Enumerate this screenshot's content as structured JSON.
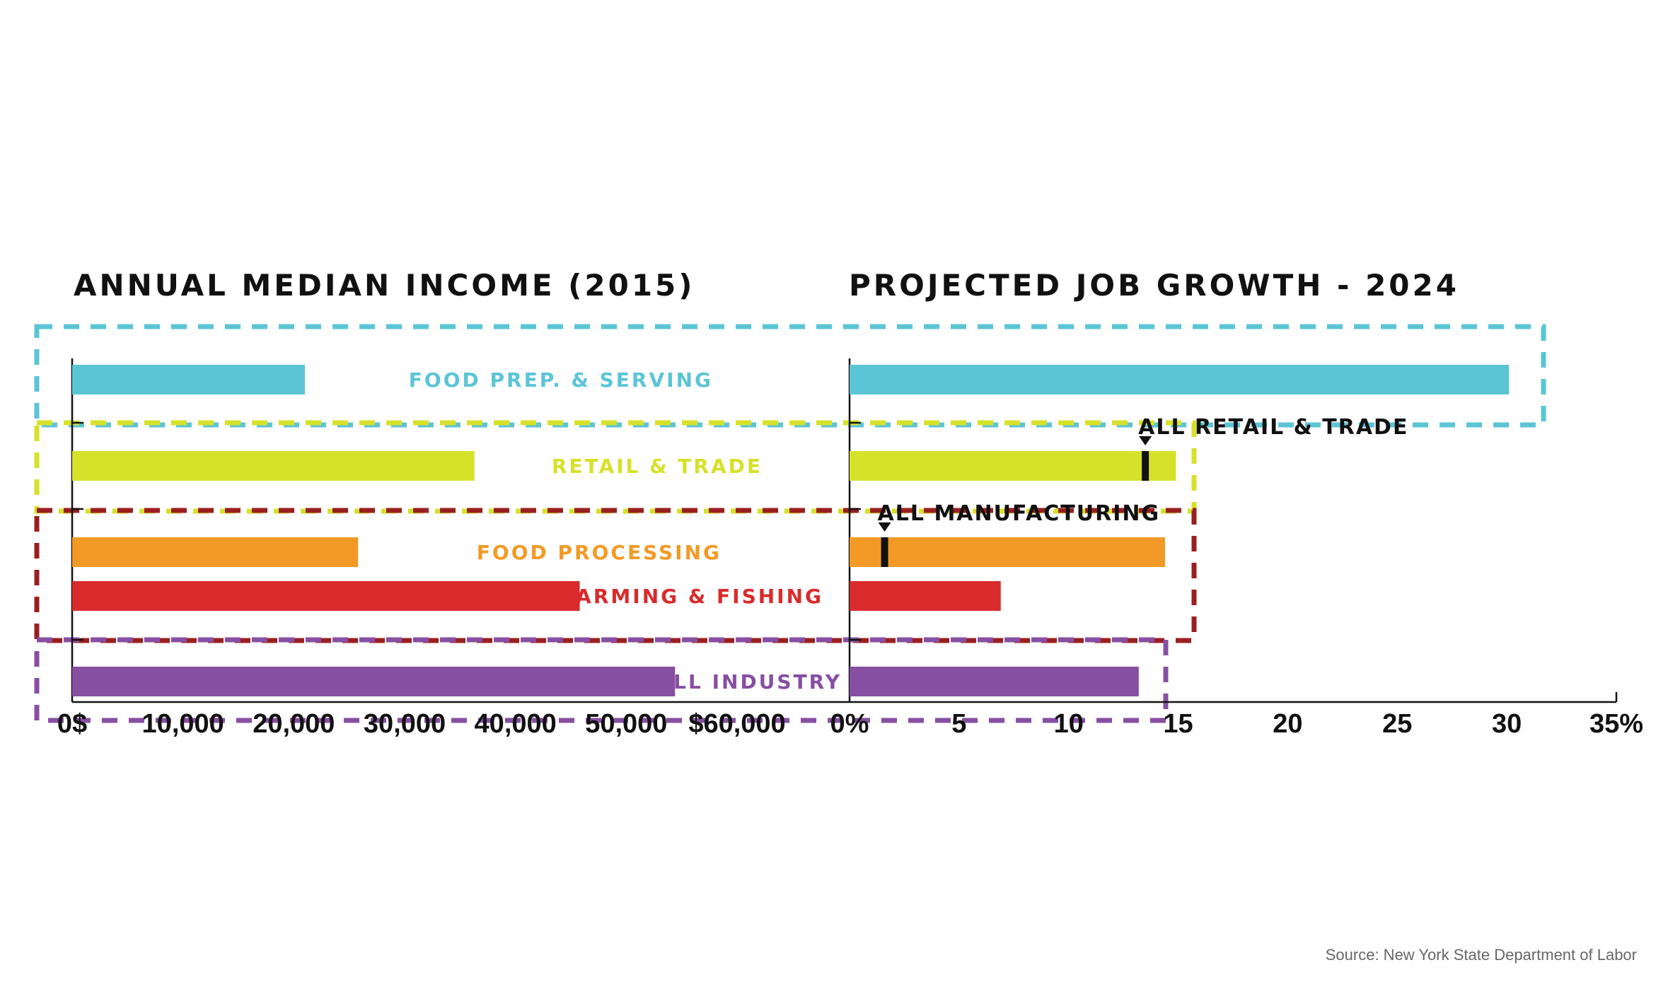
{
  "chart_data": [
    {
      "type": "bar",
      "orientation": "horizontal",
      "title": "ANNUAL MEDIAN INCOME (2015)",
      "categories": [
        "FOOD PREP. & SERVING",
        "RETAIL & TRADE",
        "FOOD PROCESSING",
        "FARMING & FISHING",
        "ALL INDUSTRY"
      ],
      "values": [
        21000,
        36300,
        25800,
        45800,
        54400
      ],
      "xlim": [
        0,
        60000
      ],
      "tick_labels": [
        "0$",
        "10,000",
        "20,000",
        "30,000",
        "40,000",
        "50,000",
        "$60,000"
      ],
      "tick_values": [
        0,
        10000,
        20000,
        30000,
        40000,
        50000,
        60000
      ]
    },
    {
      "type": "bar",
      "orientation": "horizontal",
      "title": "PROJECTED JOB GROWTH - 2024",
      "categories": [
        "FOOD PREP. & SERVING",
        "RETAIL & TRADE",
        "FOOD PROCESSING",
        "FARMING & FISHING",
        "ALL INDUSTRY"
      ],
      "values": [
        30.1,
        14.9,
        14.4,
        6.9,
        13.2
      ],
      "xlim": [
        0,
        35
      ],
      "tick_labels": [
        "0%",
        "5",
        "10",
        "15",
        "20",
        "25",
        "30",
        "35%"
      ],
      "tick_values": [
        0,
        5,
        10,
        15,
        20,
        25,
        30,
        35
      ],
      "reference_markers": [
        {
          "label": "ALL RETAIL & TRADE",
          "value": 13.5,
          "category": "RETAIL & TRADE"
        },
        {
          "label": "ALL MANUFACTURING",
          "value": 1.6,
          "category": "FOOD PROCESSING"
        }
      ]
    }
  ],
  "colors": {
    "food_prep": "#5bc5d6",
    "retail": "#d6e12a",
    "food_processing": "#f29a25",
    "farming": "#d92b2b",
    "all_industry": "#874fa2",
    "manufacturing_box": "#9a1f1f",
    "text": "#111111"
  },
  "source": "Source: New York State Department of Labor"
}
